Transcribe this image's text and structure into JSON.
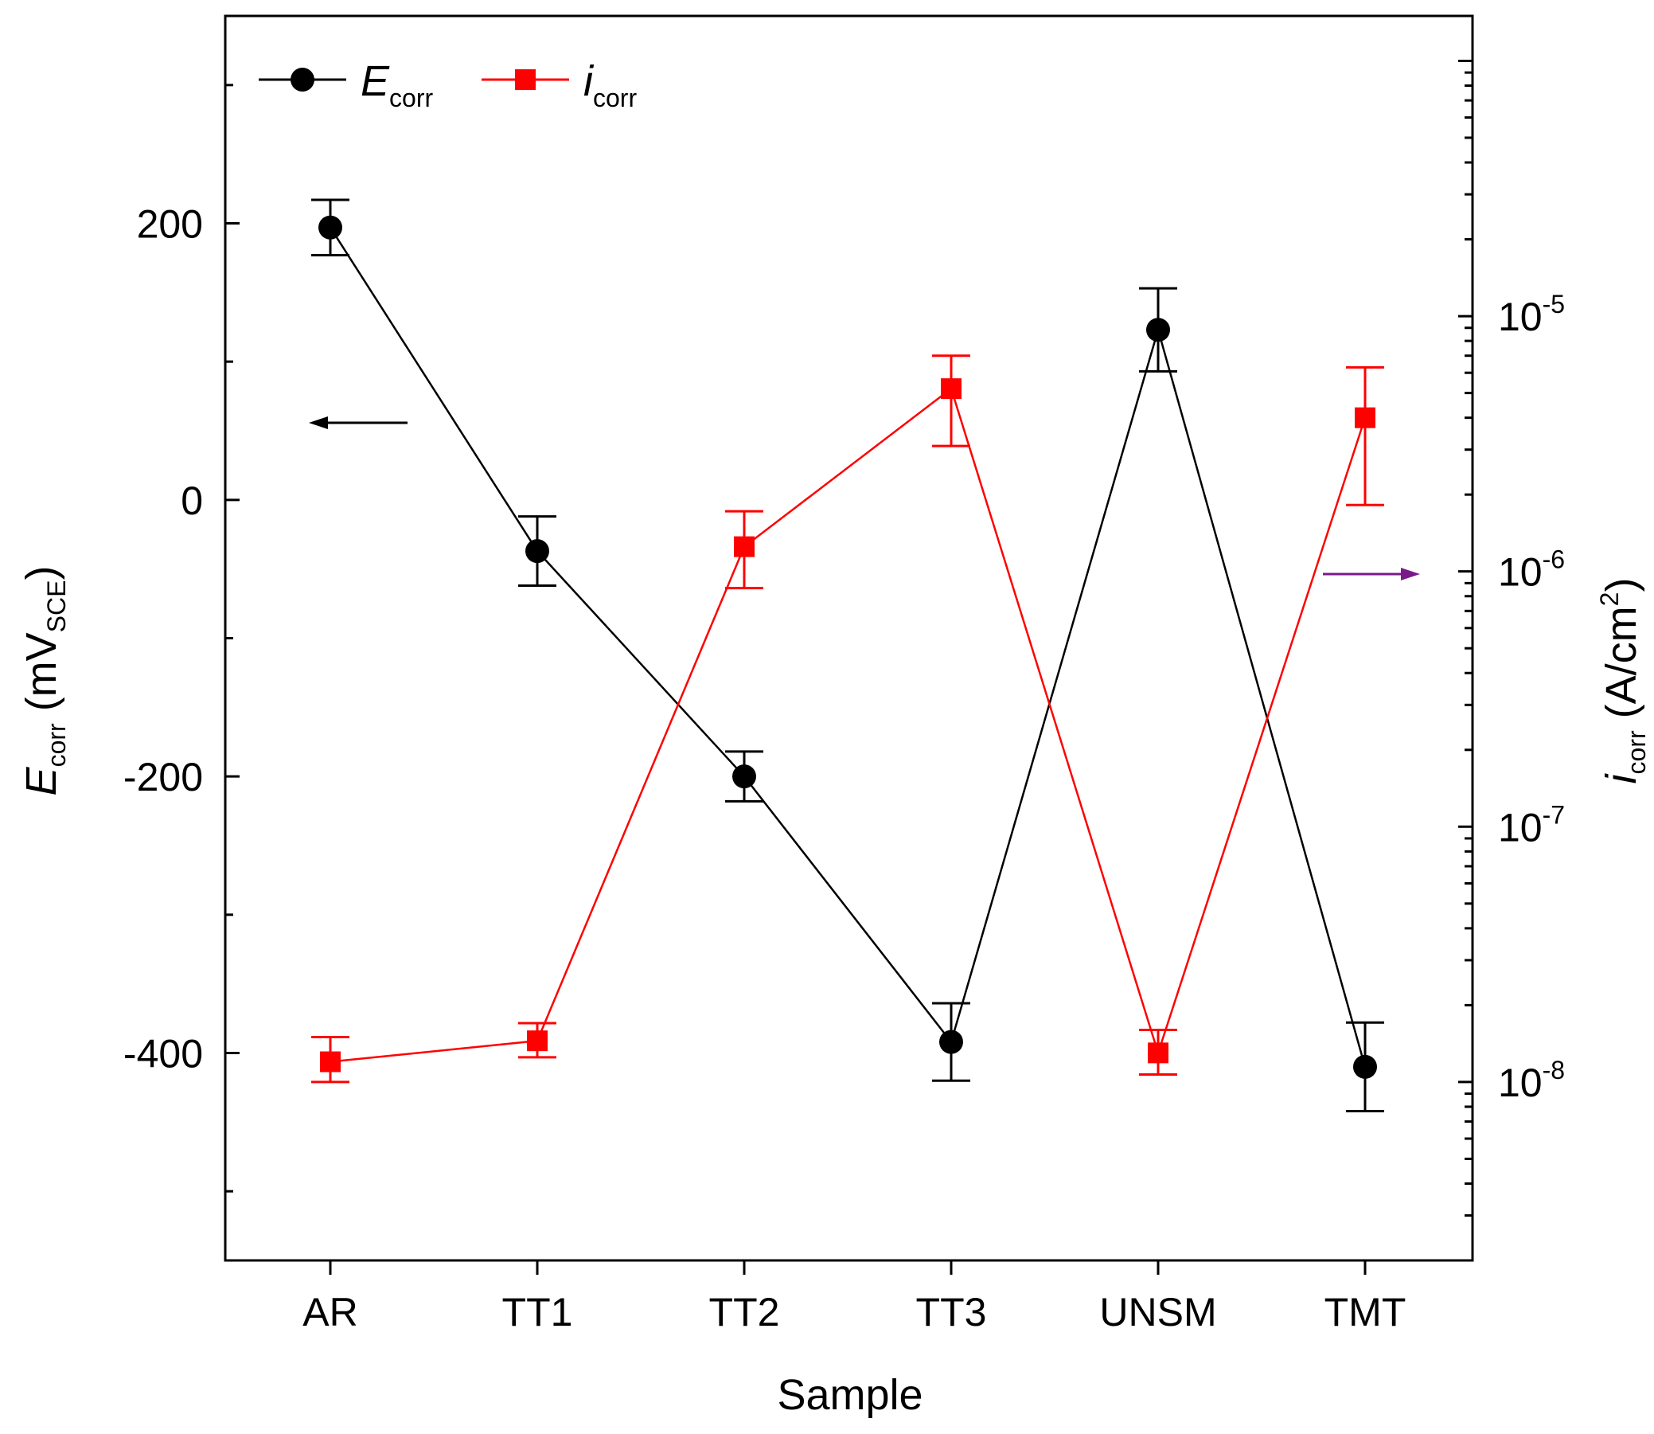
{
  "chart_data": {
    "type": "line",
    "xlabel": "Sample",
    "categories": [
      "AR",
      "TT1",
      "TT2",
      "TT3",
      "UNSM",
      "TMT"
    ],
    "left_axis": {
      "label_main": "E",
      "label_sub": "corr",
      "label_unit_open": " (mV",
      "label_unit_sub": "SCE",
      "label_unit_close": ")",
      "ylim": [
        -550,
        350
      ],
      "ticks": [
        -400,
        -200,
        0,
        200
      ],
      "tick_labels": [
        "-400",
        "-200",
        "0",
        "200"
      ],
      "minor_ticks": [
        -500,
        -300,
        -100,
        100,
        300
      ]
    },
    "right_axis": {
      "label_main": "i",
      "label_sub": "corr",
      "label_unit": " (A/cm",
      "label_sup": "2",
      "label_close": ")",
      "scale": "log",
      "ylim": [
        2e-09,
        0.00015
      ],
      "ticks": [
        1e-08,
        1e-07,
        1e-06,
        1e-05
      ],
      "tick_base": "10",
      "tick_exponents": [
        "-8",
        "-7",
        "-6",
        "-5"
      ]
    },
    "series": [
      {
        "name": "E",
        "name_sub": "corr",
        "axis": "left",
        "color": "#000000",
        "marker": "circle",
        "values": [
          197,
          -37,
          -200,
          -392,
          123,
          -410
        ],
        "error": [
          20,
          25,
          18,
          28,
          30,
          32
        ]
      },
      {
        "name": "i",
        "name_sub": "corr",
        "axis": "right",
        "color": "#ff0000",
        "marker": "square",
        "values": [
          1.2e-08,
          1.45e-08,
          1.25e-06,
          5.2e-06,
          1.3e-08,
          4e-06
        ],
        "error_low": [
          1e-08,
          1.25e-08,
          8.6e-07,
          3.1e-06,
          1.07e-08,
          1.82e-06
        ],
        "error_high": [
          1.5e-08,
          1.7e-08,
          1.72e-06,
          7e-06,
          1.6e-08,
          6.3e-06
        ]
      }
    ],
    "annotations": [
      {
        "type": "arrow",
        "direction": "left",
        "target_axis": "left",
        "color": "#000000"
      },
      {
        "type": "arrow",
        "direction": "right",
        "target_axis": "right",
        "color": "#7a1a8a"
      }
    ],
    "legend_position": "top-left",
    "grid": false
  }
}
